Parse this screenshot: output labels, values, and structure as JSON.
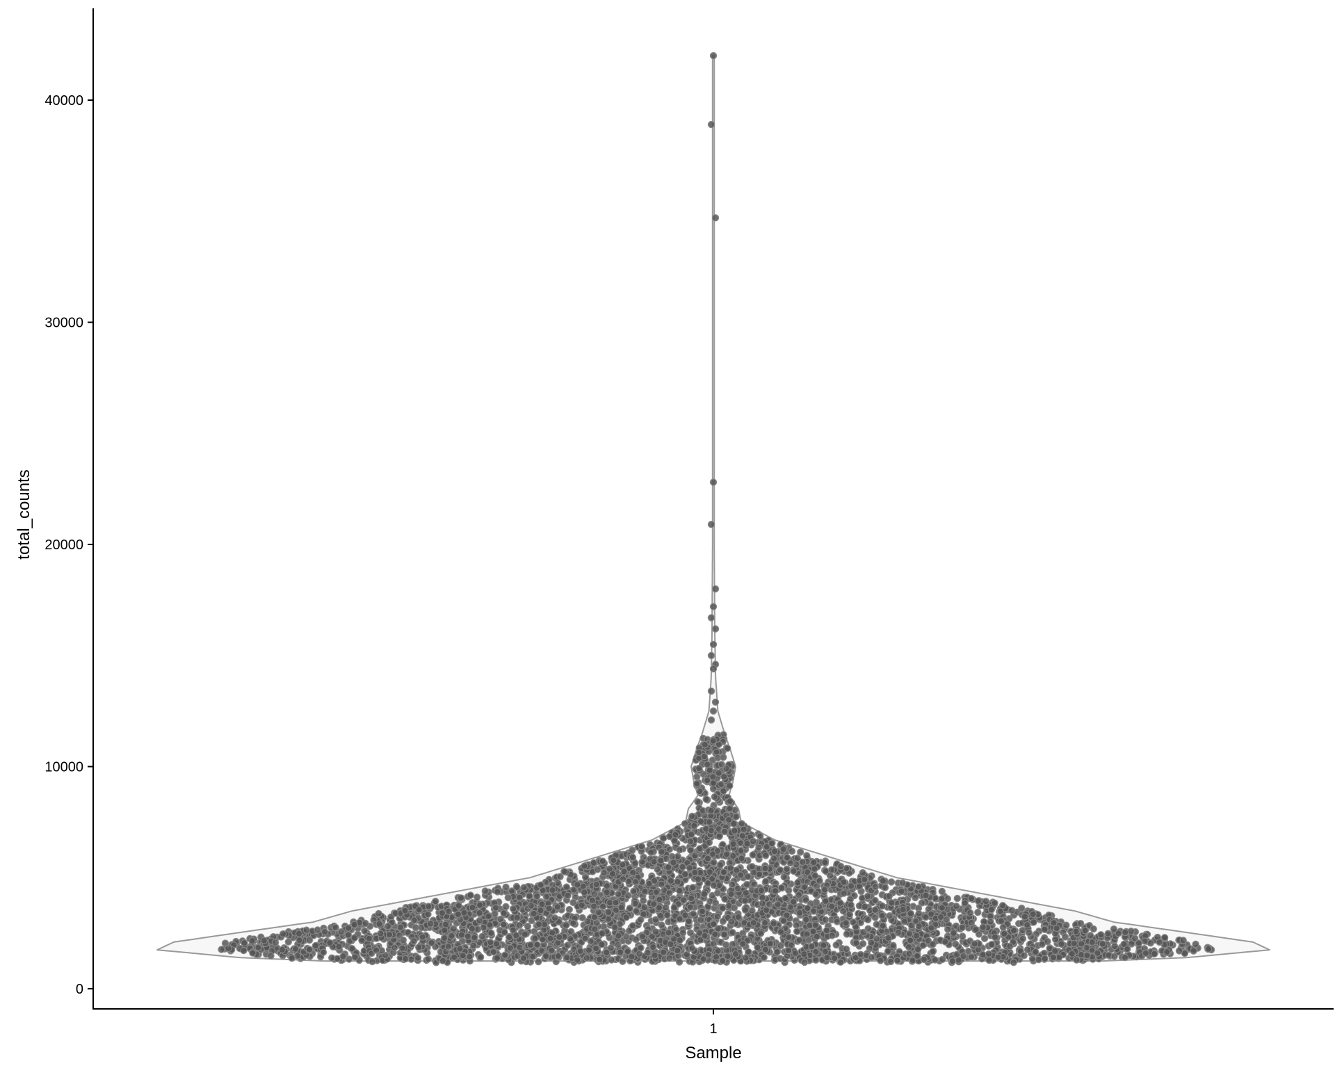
{
  "chart_data": {
    "type": "violin",
    "xlabel": "Sample",
    "ylabel": "total_counts",
    "categories": [
      "1"
    ],
    "ylim": [
      -900,
      44000
    ],
    "yticks": [
      0,
      10000,
      20000,
      30000,
      40000
    ],
    "ytick_labels": [
      "0",
      "10000",
      "20000",
      "30000",
      "40000"
    ],
    "grid": false,
    "legend": "none",
    "colors": {
      "violin_fill": "#f7f7f7",
      "violin_stroke": "#999999",
      "point_fill": "#555555",
      "point_stroke": "#888888",
      "axis": "#000000"
    },
    "violin_density": [
      {
        "y": 1250,
        "width": 0.7
      },
      {
        "y": 1400,
        "width": 0.85
      },
      {
        "y": 1750,
        "width": 1.0
      },
      {
        "y": 2100,
        "width": 0.97
      },
      {
        "y": 2500,
        "width": 0.86
      },
      {
        "y": 3000,
        "width": 0.72
      },
      {
        "y": 3500,
        "width": 0.65
      },
      {
        "y": 4200,
        "width": 0.5
      },
      {
        "y": 5000,
        "width": 0.33
      },
      {
        "y": 6000,
        "width": 0.2
      },
      {
        "y": 6700,
        "width": 0.11
      },
      {
        "y": 7500,
        "width": 0.05
      },
      {
        "y": 8100,
        "width": 0.045
      },
      {
        "y": 8700,
        "width": 0.028
      },
      {
        "y": 9300,
        "width": 0.035
      },
      {
        "y": 10000,
        "width": 0.04
      },
      {
        "y": 10800,
        "width": 0.03
      },
      {
        "y": 11500,
        "width": 0.02
      },
      {
        "y": 12500,
        "width": 0.008
      },
      {
        "y": 14000,
        "width": 0.004
      },
      {
        "y": 16000,
        "width": 0.0025
      },
      {
        "y": 20000,
        "width": 0.0015
      },
      {
        "y": 30000,
        "width": 0.001
      },
      {
        "y": 42000,
        "width": 0.001
      }
    ],
    "outlier_points": [
      42000,
      38900,
      34700,
      22800,
      20900,
      18000,
      17200,
      16700,
      16200,
      15500,
      15000,
      14600,
      14400,
      13400,
      12900,
      12500,
      12100
    ],
    "n_bulk_points": 4200,
    "bulk_range": [
      1200,
      11500
    ]
  }
}
